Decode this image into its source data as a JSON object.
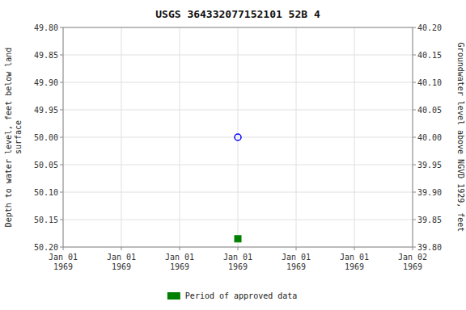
{
  "chart_data": {
    "type": "scatter",
    "title": "USGS 364332077152101 52B  4",
    "y_label": "Depth to water level, feet below land\nsurface",
    "y2_label": "Groundwater level above NGVD 1929, feet",
    "categories": [
      "Jan 01\n1969",
      "Jan 01\n1969",
      "Jan 01\n1969",
      "Jan 01\n1969",
      "Jan 01\n1969",
      "Jan 01\n1969",
      "Jan 02\n1969"
    ],
    "series": [
      {
        "color": "blue",
        "marker": "open-circle",
        "values": [
          null,
          null,
          null,
          50.0,
          null,
          null,
          null
        ]
      },
      {
        "name": "Period of approved data",
        "color": "#008000",
        "marker": "square",
        "values": [
          null,
          null,
          null,
          50.185,
          null,
          null,
          null
        ]
      }
    ],
    "ylim": [
      50.2,
      49.8
    ],
    "yticks": [
      {
        "value": 49.8,
        "label": "49.80"
      },
      {
        "value": 49.85,
        "label": "49.85"
      },
      {
        "value": 49.9,
        "label": "49.90"
      },
      {
        "value": 49.95,
        "label": "49.95"
      },
      {
        "value": 50.0,
        "label": "50.00"
      },
      {
        "value": 50.05,
        "label": "50.05"
      },
      {
        "value": 50.1,
        "label": "50.10"
      },
      {
        "value": 50.15,
        "label": "50.15"
      },
      {
        "value": 50.2,
        "label": "50.20"
      }
    ],
    "y2lim": [
      39.8,
      40.2
    ],
    "y2ticks": [
      {
        "value": 40.2,
        "label": "40.20"
      },
      {
        "value": 40.15,
        "label": "40.15"
      },
      {
        "value": 40.1,
        "label": "40.10"
      },
      {
        "value": 40.05,
        "label": "40.05"
      },
      {
        "value": 40.0,
        "label": "40.00"
      },
      {
        "value": 39.95,
        "label": "39.95"
      },
      {
        "value": 39.9,
        "label": "39.90"
      },
      {
        "value": 39.85,
        "label": "39.85"
      },
      {
        "value": 39.8,
        "label": "39.80"
      }
    ],
    "grid": true,
    "legend": "bottom"
  }
}
